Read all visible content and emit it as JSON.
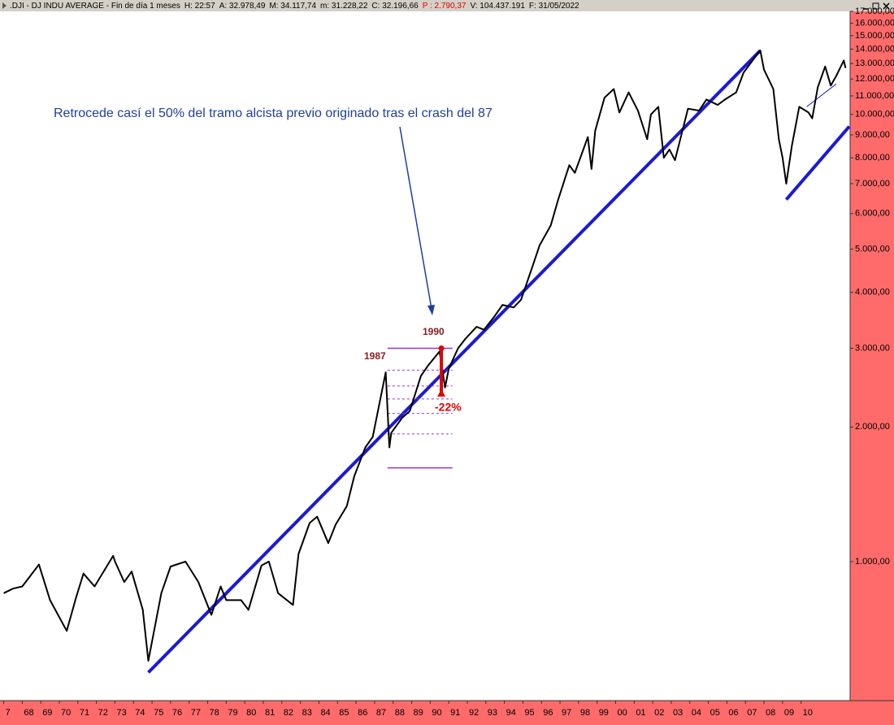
{
  "chart_data": {
    "type": "line",
    "title": ".DJI - DJ INDU AVERAGE - Fin de día 1 meses",
    "stats": [
      {
        "text": "H: 22:57",
        "color": "#000000"
      },
      {
        "text": "A: 32.978,49",
        "color": "#000000"
      },
      {
        "text": "M: 34.117,74",
        "color": "#000000"
      },
      {
        "text": "m: 31.228,22",
        "color": "#000000"
      },
      {
        "text": "C: 32.196,66",
        "color": "#000000"
      },
      {
        "text": "P : 2.790,37",
        "color": "#e00000"
      },
      {
        "text": "V: 104.437.191",
        "color": "#000000"
      },
      {
        "text": "F: 31/05/2022",
        "color": "#000000"
      }
    ],
    "annotations": [
      "Retrocede casí el 50% del tramo alcista previo originado tras el crash del 87",
      "1987",
      "1990",
      "-22%"
    ],
    "log_scale": true,
    "xlim": [
      1966.8,
      2012.6
    ],
    "ylim": [
      497,
      17000
    ],
    "yticks": [
      {
        "value": 1000,
        "label": "1.000,00"
      },
      {
        "value": 2000,
        "label": "2.000,00"
      },
      {
        "value": 3000,
        "label": "3.000,00"
      },
      {
        "value": 4000,
        "label": "4.000,00"
      },
      {
        "value": 5000,
        "label": "5.000,00"
      },
      {
        "value": 6000,
        "label": "6.000,00"
      },
      {
        "value": 7000,
        "label": "7.000,00"
      },
      {
        "value": 8000,
        "label": "8.000,00"
      },
      {
        "value": 9000,
        "label": "9.000,00"
      },
      {
        "value": 10000,
        "label": "10.000,00"
      },
      {
        "value": 11000,
        "label": "11.000,00"
      },
      {
        "value": 12000,
        "label": "12.000,00"
      },
      {
        "value": 13000,
        "label": "13.000,00"
      },
      {
        "value": 14000,
        "label": "14.000,00"
      },
      {
        "value": 15000,
        "label": "15.000,00"
      },
      {
        "value": 16000,
        "label": "16.000,00"
      },
      {
        "value": 17000,
        "label": "17.000,00"
      }
    ],
    "xticks": [
      {
        "value": 1967,
        "label": "7"
      },
      {
        "value": 1968,
        "label": "68"
      },
      {
        "value": 1969,
        "label": "69"
      },
      {
        "value": 1970,
        "label": "70"
      },
      {
        "value": 1971,
        "label": "71"
      },
      {
        "value": 1972,
        "label": "72"
      },
      {
        "value": 1973,
        "label": "73"
      },
      {
        "value": 1974,
        "label": "74"
      },
      {
        "value": 1975,
        "label": "75"
      },
      {
        "value": 1976,
        "label": "76"
      },
      {
        "value": 1977,
        "label": "77"
      },
      {
        "value": 1978,
        "label": "78"
      },
      {
        "value": 1979,
        "label": "79"
      },
      {
        "value": 1980,
        "label": "80"
      },
      {
        "value": 1981,
        "label": "81"
      },
      {
        "value": 1982,
        "label": "82"
      },
      {
        "value": 1983,
        "label": "83"
      },
      {
        "value": 1984,
        "label": "84"
      },
      {
        "value": 1985,
        "label": "85"
      },
      {
        "value": 1986,
        "label": "86"
      },
      {
        "value": 1987,
        "label": "87"
      },
      {
        "value": 1988,
        "label": "88"
      },
      {
        "value": 1989,
        "label": "89"
      },
      {
        "value": 1990,
        "label": "90"
      },
      {
        "value": 1991,
        "label": "91"
      },
      {
        "value": 1992,
        "label": "92"
      },
      {
        "value": 1993,
        "label": "93"
      },
      {
        "value": 1994,
        "label": "94"
      },
      {
        "value": 1995,
        "label": "95"
      },
      {
        "value": 1996,
        "label": "96"
      },
      {
        "value": 1997,
        "label": "97"
      },
      {
        "value": 1998,
        "label": "98"
      },
      {
        "value": 1999,
        "label": "99"
      },
      {
        "value": 2000,
        "label": "00"
      },
      {
        "value": 2001,
        "label": "01"
      },
      {
        "value": 2002,
        "label": "02"
      },
      {
        "value": 2003,
        "label": "03"
      },
      {
        "value": 2004,
        "label": "04"
      },
      {
        "value": 2005,
        "label": "05"
      },
      {
        "value": 2006,
        "label": "06"
      },
      {
        "value": 2007,
        "label": "07"
      },
      {
        "value": 2008,
        "label": "08"
      },
      {
        "value": 2009,
        "label": "09"
      },
      {
        "value": 2010,
        "label": "10"
      }
    ],
    "series": [
      {
        "color": "#000000",
        "x": [
          1967.0,
          1967.5,
          1968.0,
          1968.9,
          1969.5,
          1970.4,
          1970.9,
          1971.3,
          1971.9,
          1972.9,
          1973.0,
          1973.5,
          1973.9,
          1974.5,
          1974.8,
          1975.5,
          1976.0,
          1976.8,
          1977.5,
          1978.2,
          1978.7,
          1979.0,
          1979.8,
          1980.2,
          1980.9,
          1981.3,
          1981.8,
          1982.6,
          1982.9,
          1983.5,
          1983.9,
          1984.5,
          1984.9,
          1985.5,
          1985.9,
          1986.5,
          1986.9,
          1987.6,
          1987.8,
          1987.9,
          1988.5,
          1988.9,
          1989.5,
          1989.9,
          1990.5,
          1990.8,
          1991.0,
          1991.5,
          1991.9,
          1992.5,
          1992.9,
          1993.5,
          1993.9,
          1994.5,
          1994.9,
          1995.5,
          1995.9,
          1996.5,
          1996.9,
          1997.5,
          1997.8,
          1998.5,
          1998.7,
          1998.9,
          1999.4,
          1999.9,
          2000.2,
          2000.7,
          2001.2,
          2001.7,
          2001.9,
          2002.3,
          2002.6,
          2002.9,
          2003.2,
          2003.9,
          2004.5,
          2004.9,
          2005.5,
          2005.9,
          2006.5,
          2006.9,
          2007.5,
          2007.8,
          2008.0,
          2008.5,
          2008.8,
          2009.0,
          2009.2,
          2009.5,
          2009.9,
          2010.4,
          2010.6,
          2010.9,
          2011.3,
          2011.6,
          2011.9,
          2012.3,
          2012.4
        ],
        "values": [
          850,
          870,
          880,
          985,
          820,
          700,
          830,
          940,
          880,
          1030,
          1000,
          900,
          950,
          780,
          600,
          850,
          975,
          1000,
          900,
          760,
          880,
          820,
          820,
          780,
          980,
          1000,
          850,
          800,
          1040,
          1220,
          1260,
          1100,
          1210,
          1330,
          1550,
          1800,
          1900,
          2650,
          1800,
          1940,
          2100,
          2170,
          2600,
          2750,
          2950,
          2450,
          2700,
          3000,
          3150,
          3350,
          3300,
          3550,
          3750,
          3700,
          3850,
          4550,
          5100,
          5650,
          6450,
          7700,
          7400,
          8900,
          7550,
          9200,
          10900,
          11400,
          10100,
          11200,
          10200,
          8800,
          10000,
          10400,
          8000,
          8350,
          7900,
          10300,
          10200,
          10800,
          10500,
          10800,
          11200,
          12400,
          13400,
          13900,
          12600,
          11400,
          8800,
          8000,
          7000,
          8500,
          10400,
          10100,
          9800,
          11500,
          12800,
          11600,
          12200,
          13200,
          12700
        ]
      }
    ],
    "trendlines": [
      {
        "color": "#1a1ad6",
        "x": [
          1974.8,
          2007.8
        ],
        "values": [
          565,
          13900
        ]
      },
      {
        "color": "#1a1ad6",
        "x": [
          2009.2,
          2012.6
        ],
        "values": [
          6450,
          9400
        ]
      },
      {
        "color": "#1a1ad6",
        "x": [
          2010.3,
          2011.9
        ],
        "values": [
          10400,
          11700
        ]
      }
    ],
    "fib": {
      "color": "#9a32d6",
      "x": [
        1987.7,
        1991.2
      ],
      "levels": [
        2999,
        2680,
        2470,
        2310,
        2145,
        1930,
        1620
      ]
    },
    "drawdown": {
      "color": "#e00000",
      "x": 1990.6,
      "from": 2999,
      "to": 2340
    }
  }
}
